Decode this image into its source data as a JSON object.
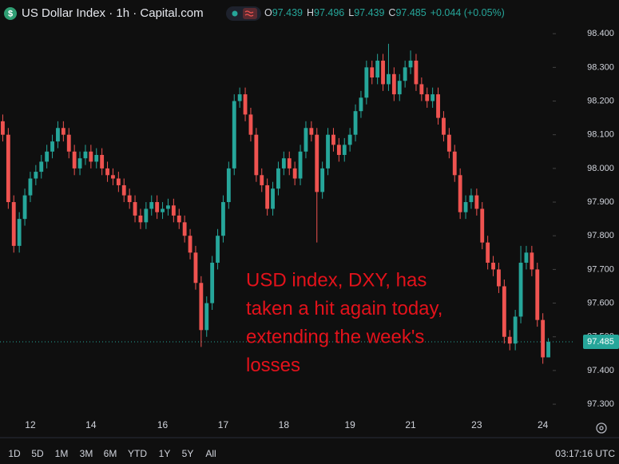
{
  "chart_data": {
    "type": "candlestick",
    "title": "US Dollar Index · 1h · Capital.com",
    "icon_text": "$",
    "ohlc_labels": [
      "O",
      "H",
      "L",
      "C"
    ],
    "change": "+0.044 (+0.05%)",
    "annotation": [
      "USD index, DXY, has",
      "taken a hit again today,",
      "extending the week's",
      "losses"
    ],
    "time": "03:17:16 UTC",
    "ranges": [
      "1D",
      "5D",
      "1M",
      "3M",
      "6M",
      "YTD",
      "1Y",
      "5Y",
      "All"
    ],
    "up_color": "#26a69a",
    "down_color": "#ef5350",
    "annotation_color": "#e3121b",
    "ylim": [
      97.267,
      98.5
    ],
    "yticks": [
      {
        "value": 98.4,
        "label": "98.400"
      },
      {
        "value": 98.3,
        "label": "98.300"
      },
      {
        "value": 98.2,
        "label": "98.200"
      },
      {
        "value": 98.1,
        "label": "98.100"
      },
      {
        "value": 98.0,
        "label": "98.000"
      },
      {
        "value": 97.9,
        "label": "97.900"
      },
      {
        "value": 97.8,
        "label": "97.800"
      },
      {
        "value": 97.7,
        "label": "97.700"
      },
      {
        "value": 97.6,
        "label": "97.600"
      },
      {
        "value": 97.5,
        "label": "97.500"
      },
      {
        "value": 97.4,
        "label": "97.400"
      },
      {
        "value": 97.3,
        "label": "97.300"
      }
    ],
    "categories": [
      null,
      null,
      null,
      null,
      null,
      "12",
      null,
      null,
      null,
      null,
      null,
      null,
      null,
      null,
      null,
      null,
      "14",
      null,
      null,
      null,
      null,
      null,
      null,
      null,
      null,
      null,
      null,
      null,
      null,
      "16",
      null,
      null,
      null,
      null,
      null,
      null,
      null,
      null,
      null,
      null,
      "17",
      null,
      null,
      null,
      null,
      null,
      null,
      null,
      null,
      null,
      null,
      "18",
      null,
      null,
      null,
      null,
      null,
      null,
      null,
      null,
      null,
      null,
      null,
      "19",
      null,
      null,
      null,
      null,
      null,
      null,
      null,
      null,
      null,
      null,
      "21",
      null,
      null,
      null,
      null,
      null,
      null,
      null,
      null,
      null,
      null,
      null,
      "23",
      null,
      null,
      null,
      null,
      null,
      null,
      null,
      null,
      null,
      null,
      null,
      "24",
      null
    ],
    "open": [
      98.14,
      98.1,
      97.9,
      97.77,
      97.85,
      97.92,
      97.97,
      97.99,
      98.02,
      98.05,
      98.08,
      98.12,
      98.1,
      98.05,
      98.0,
      98.03,
      98.05,
      98.02,
      98.04,
      98.0,
      97.98,
      97.97,
      97.95,
      97.92,
      97.9,
      97.86,
      97.84,
      97.88,
      97.9,
      97.87,
      97.88,
      97.89,
      97.86,
      97.84,
      97.8,
      97.75,
      97.66,
      97.52,
      97.6,
      97.72,
      97.8,
      97.9,
      98.0,
      98.2,
      98.22,
      98.16,
      98.1,
      97.98,
      97.95,
      97.88,
      97.94,
      98.0,
      98.03,
      98.0,
      97.97,
      98.05,
      98.12,
      98.1,
      97.93,
      98.0,
      98.1,
      98.07,
      98.04,
      98.07,
      98.1,
      98.17,
      98.21,
      98.3,
      98.27,
      98.32,
      98.25,
      98.28,
      98.22,
      98.26,
      98.3,
      98.32,
      98.25,
      98.22,
      98.2,
      98.22,
      98.15,
      98.1,
      98.05,
      97.98,
      97.87,
      97.9,
      97.92,
      97.88,
      97.78,
      97.72,
      97.7,
      97.65,
      97.5,
      97.48,
      97.56,
      97.72,
      97.75,
      97.7,
      97.55,
      97.439
    ],
    "high": [
      98.16,
      98.12,
      97.92,
      97.87,
      97.94,
      97.99,
      98.01,
      98.04,
      98.07,
      98.1,
      98.14,
      98.14,
      98.12,
      98.07,
      98.05,
      98.07,
      98.07,
      98.06,
      98.06,
      98.02,
      98.0,
      97.99,
      97.97,
      97.94,
      97.92,
      97.88,
      97.9,
      97.92,
      97.92,
      97.9,
      97.91,
      97.91,
      97.88,
      97.86,
      97.82,
      97.77,
      97.68,
      97.62,
      97.74,
      97.82,
      97.92,
      98.02,
      98.22,
      98.24,
      98.24,
      98.18,
      98.12,
      98.0,
      97.97,
      97.96,
      98.02,
      98.05,
      98.05,
      98.02,
      98.07,
      98.14,
      98.14,
      98.12,
      98.02,
      98.12,
      98.12,
      98.09,
      98.09,
      98.12,
      98.19,
      98.23,
      98.32,
      98.32,
      98.34,
      98.34,
      98.37,
      98.3,
      98.28,
      98.32,
      98.35,
      98.34,
      98.27,
      98.24,
      98.24,
      98.24,
      98.17,
      98.12,
      98.07,
      98.0,
      97.92,
      97.94,
      97.94,
      97.9,
      97.8,
      97.74,
      97.72,
      97.67,
      97.52,
      97.58,
      97.77,
      97.77,
      97.77,
      97.72,
      97.57,
      97.496
    ],
    "low": [
      98.08,
      97.88,
      97.75,
      97.75,
      97.83,
      97.9,
      97.95,
      97.97,
      98.0,
      98.03,
      98.06,
      98.08,
      98.03,
      97.98,
      97.98,
      98.01,
      98.0,
      98.0,
      97.98,
      97.96,
      97.95,
      97.93,
      97.9,
      97.88,
      97.84,
      97.82,
      97.82,
      97.86,
      97.85,
      97.85,
      97.86,
      97.84,
      97.82,
      97.78,
      97.73,
      97.64,
      97.47,
      97.5,
      97.58,
      97.7,
      97.78,
      97.88,
      97.98,
      98.18,
      98.14,
      98.08,
      97.96,
      97.93,
      97.86,
      97.86,
      97.92,
      97.98,
      97.98,
      97.95,
      97.95,
      98.03,
      98.08,
      97.78,
      97.91,
      97.98,
      98.05,
      98.02,
      98.02,
      98.05,
      98.08,
      98.15,
      98.19,
      98.25,
      98.25,
      98.23,
      98.23,
      98.2,
      98.2,
      98.24,
      98.28,
      98.23,
      98.2,
      98.18,
      98.18,
      98.13,
      98.08,
      98.03,
      97.96,
      97.85,
      97.85,
      97.88,
      97.86,
      97.76,
      97.7,
      97.68,
      97.63,
      97.48,
      97.46,
      97.46,
      97.54,
      97.7,
      97.68,
      97.53,
      97.42,
      97.439
    ],
    "close": [
      98.1,
      97.9,
      97.77,
      97.85,
      97.92,
      97.97,
      97.99,
      98.02,
      98.05,
      98.08,
      98.12,
      98.1,
      98.05,
      98.0,
      98.03,
      98.05,
      98.02,
      98.04,
      98.0,
      97.98,
      97.97,
      97.95,
      97.92,
      97.9,
      97.86,
      97.84,
      97.88,
      97.9,
      97.87,
      97.88,
      97.89,
      97.86,
      97.84,
      97.8,
      97.75,
      97.66,
      97.52,
      97.6,
      97.72,
      97.8,
      97.9,
      98.0,
      98.2,
      98.22,
      98.16,
      98.1,
      97.98,
      97.95,
      97.88,
      97.94,
      98.0,
      98.03,
      98.0,
      97.97,
      98.05,
      98.12,
      98.1,
      97.93,
      98.0,
      98.1,
      98.07,
      98.04,
      98.07,
      98.1,
      98.17,
      98.21,
      98.3,
      98.27,
      98.32,
      98.25,
      98.28,
      98.22,
      98.26,
      98.3,
      98.32,
      98.25,
      98.22,
      98.2,
      98.22,
      98.15,
      98.1,
      98.05,
      97.98,
      97.87,
      97.9,
      97.92,
      97.88,
      97.78,
      97.72,
      97.7,
      97.65,
      97.5,
      97.48,
      97.56,
      97.72,
      97.75,
      97.7,
      97.55,
      97.439,
      97.485
    ]
  }
}
